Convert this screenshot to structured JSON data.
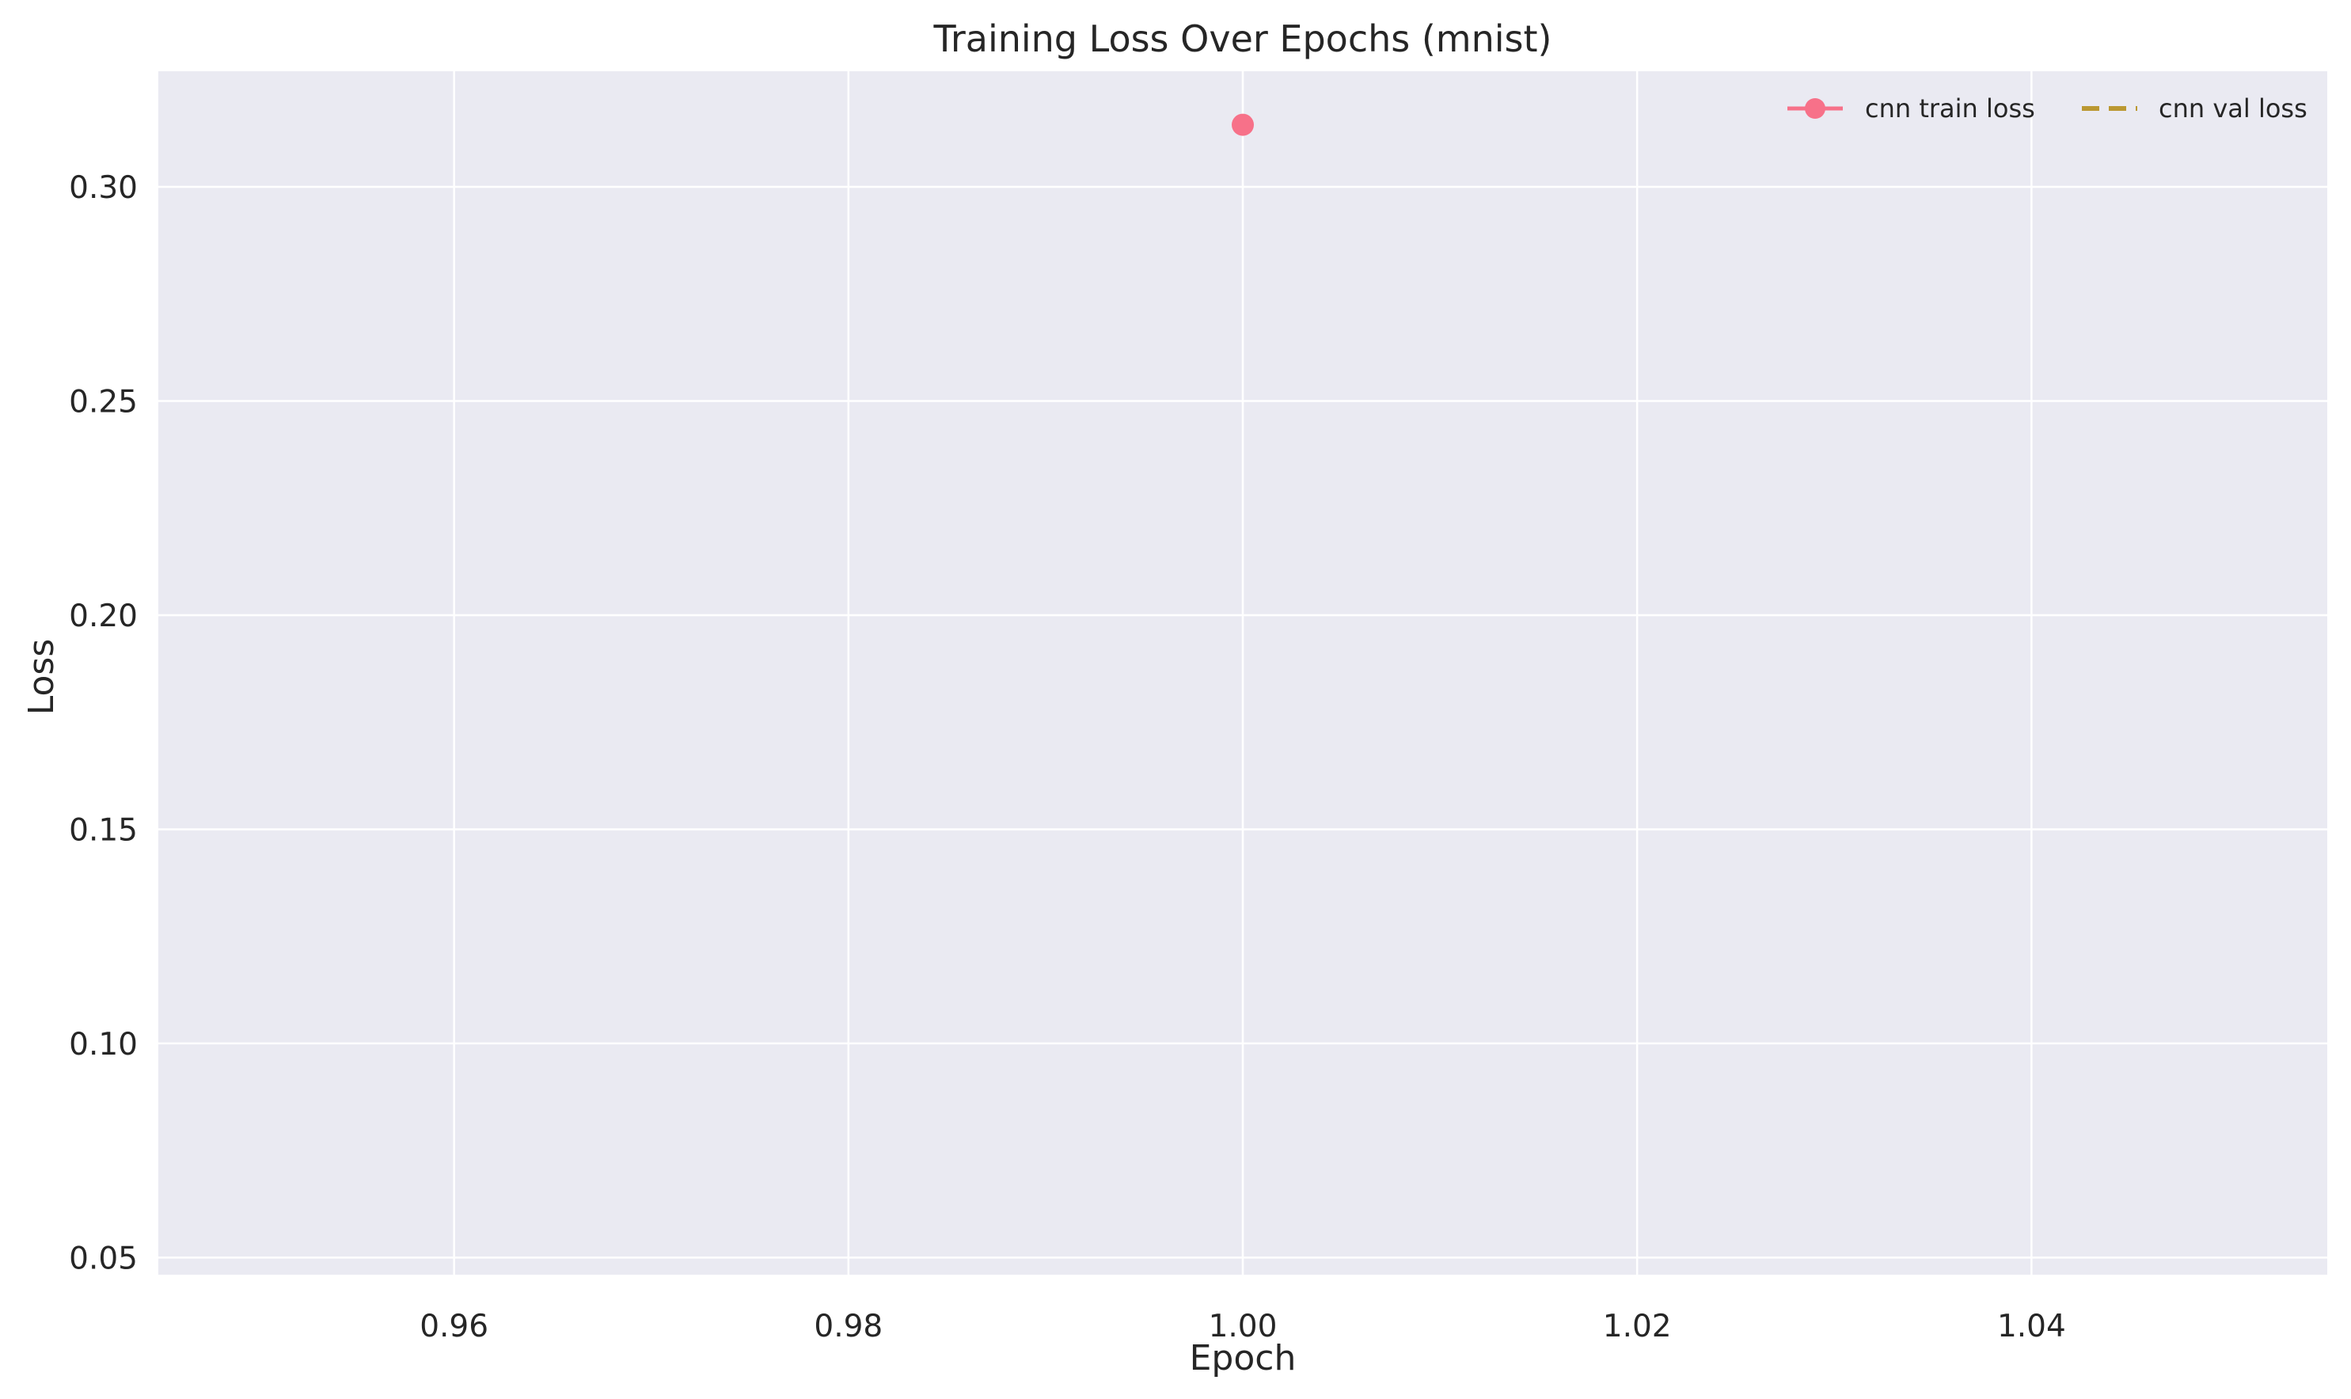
{
  "chart_data": {
    "type": "line",
    "title": "Training Loss Over Epochs (mnist)",
    "xlabel": "Epoch",
    "ylabel": "Loss",
    "xlim": [
      0.945,
      1.055
    ],
    "ylim": [
      0.046,
      0.327
    ],
    "xticks": [
      0.96,
      0.98,
      1.0,
      1.02,
      1.04
    ],
    "xtick_labels": [
      "0.96",
      "0.98",
      "1.00",
      "1.02",
      "1.04"
    ],
    "yticks": [
      0.05,
      0.1,
      0.15,
      0.2,
      0.25,
      0.3
    ],
    "ytick_labels": [
      "0.05",
      "0.10",
      "0.15",
      "0.20",
      "0.25",
      "0.30"
    ],
    "grid": true,
    "legend_position": "top-right",
    "legend_columns": 2,
    "series": [
      {
        "name": "cnn train loss",
        "x": [
          1.0
        ],
        "y": [
          0.3145
        ],
        "color": "#f77189",
        "line_style": "solid",
        "marker": "circle"
      },
      {
        "name": "cnn val loss",
        "x": [],
        "y": [],
        "color": "#bb9832",
        "line_style": "dashed",
        "marker": "none"
      }
    ],
    "colors": {
      "plot_background": "#eaeaf2",
      "grid": "#ffffff",
      "text": "#262626"
    }
  }
}
